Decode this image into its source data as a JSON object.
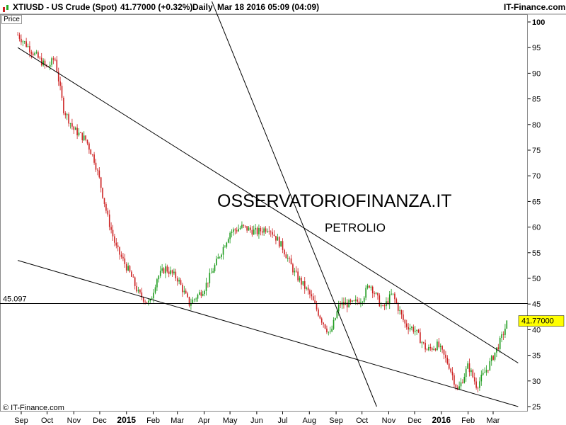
{
  "header": {
    "symbol": "XTIUSD - US Crude (Spot)",
    "last": "41.77000 (+0.32%)",
    "period": "Daily",
    "timestamp": "Mar 18 2016 05:09 (04:09)",
    "site": "IT-Finance.com"
  },
  "chart_data": {
    "type": "candlestick",
    "price_label": "Price",
    "x_ticks": [
      "Sep",
      "Oct",
      "Nov",
      "Dec",
      "2015",
      "Feb",
      "Mar",
      "Apr",
      "May",
      "Jun",
      "Jul",
      "Aug",
      "Sep",
      "Oct",
      "Nov",
      "Dec",
      "2016",
      "Feb",
      "Mar"
    ],
    "y_ticks": [
      "100",
      "95",
      "90",
      "85",
      "80",
      "75",
      "70",
      "65",
      "60",
      "55",
      "50",
      "45",
      "40",
      "35",
      "30",
      "25"
    ],
    "ylim": [
      25,
      100
    ],
    "title": "OSSERVATORIOFINANZA.IT",
    "subtitle": "PETROLIO",
    "horizontal_line": {
      "label": "45.097",
      "value": 45.097
    },
    "last_price_label": "41.77000",
    "copyright": "© IT-Finance.com",
    "price_path": [
      [
        "2014-08-28",
        97.5
      ],
      [
        "2014-09-15",
        94
      ],
      [
        "2014-10-01",
        91
      ],
      [
        "2014-10-10",
        93
      ],
      [
        "2014-10-20",
        83
      ],
      [
        "2014-11-01",
        79
      ],
      [
        "2014-11-15",
        77
      ],
      [
        "2014-11-25",
        73
      ],
      [
        "2014-12-01",
        69
      ],
      [
        "2014-12-10",
        62
      ],
      [
        "2014-12-20",
        56
      ],
      [
        "2015-01-05",
        51
      ],
      [
        "2015-01-15",
        47
      ],
      [
        "2015-01-28",
        45
      ],
      [
        "2015-02-05",
        50
      ],
      [
        "2015-02-15",
        52
      ],
      [
        "2015-03-01",
        50
      ],
      [
        "2015-03-15",
        45
      ],
      [
        "2015-04-01",
        48
      ],
      [
        "2015-04-15",
        53
      ],
      [
        "2015-05-01",
        59
      ],
      [
        "2015-05-15",
        60
      ],
      [
        "2015-06-01",
        59
      ],
      [
        "2015-06-15",
        60
      ],
      [
        "2015-07-01",
        56
      ],
      [
        "2015-07-15",
        51
      ],
      [
        "2015-08-01",
        47
      ],
      [
        "2015-08-15",
        42
      ],
      [
        "2015-08-25",
        39
      ],
      [
        "2015-09-05",
        45
      ],
      [
        "2015-09-20",
        45
      ],
      [
        "2015-10-01",
        46
      ],
      [
        "2015-10-10",
        49
      ],
      [
        "2015-10-25",
        44
      ],
      [
        "2015-11-05",
        47
      ],
      [
        "2015-11-20",
        41
      ],
      [
        "2015-12-01",
        40
      ],
      [
        "2015-12-15",
        36
      ],
      [
        "2015-12-28",
        37
      ],
      [
        "2016-01-10",
        33
      ],
      [
        "2016-01-20",
        28
      ],
      [
        "2016-02-01",
        33
      ],
      [
        "2016-02-11",
        29
      ],
      [
        "2016-02-25",
        33
      ],
      [
        "2016-03-10",
        38
      ],
      [
        "2016-03-18",
        41.77
      ]
    ],
    "trendlines": [
      {
        "from": [
          "2014-08-28",
          95
        ],
        "to": [
          "2016-03-30",
          33.5
        ]
      },
      {
        "from": [
          "2014-08-28",
          53.5
        ],
        "to": [
          "2016-03-30",
          25
        ]
      },
      {
        "from": [
          "2015-04-10",
          104
        ],
        "to": [
          "2015-10-18",
          25
        ]
      }
    ]
  }
}
